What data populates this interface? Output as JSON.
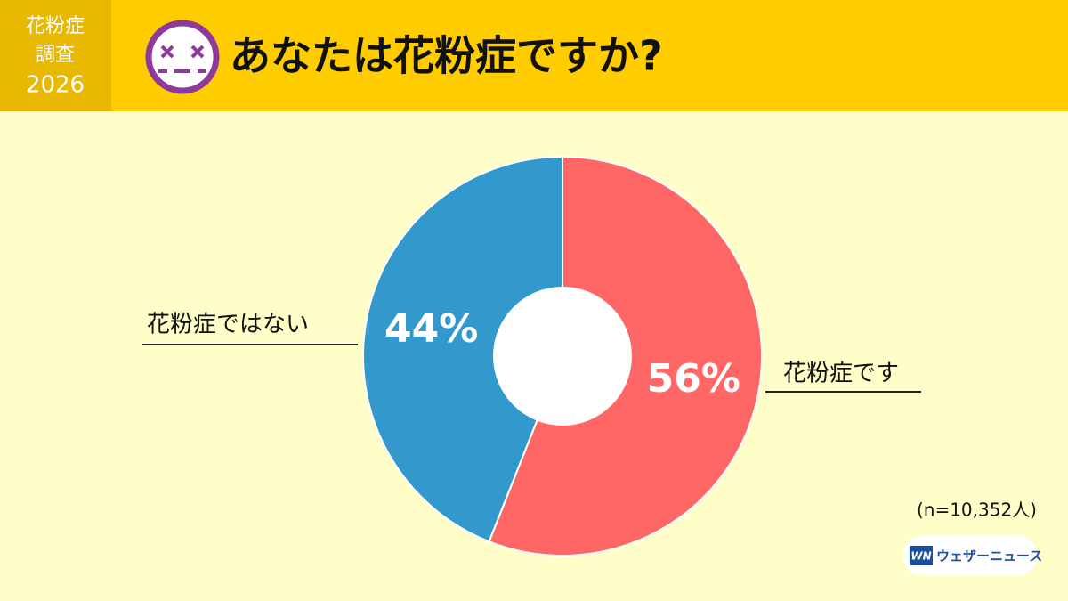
{
  "chart_data": {
    "type": "pie",
    "title": "あなたは花粉症ですか?",
    "badge": [
      "花粉症",
      "調査",
      "2026"
    ],
    "categories": [
      "花粉症です",
      "花粉症ではない"
    ],
    "values": [
      56,
      44
    ],
    "value_labels": [
      "56%",
      "44%"
    ],
    "colors": [
      "#ff6666",
      "#3399cc"
    ],
    "note": "(n=10,352人)",
    "logo": {
      "mark": "WN",
      "name": "ウェザーニュース"
    }
  }
}
